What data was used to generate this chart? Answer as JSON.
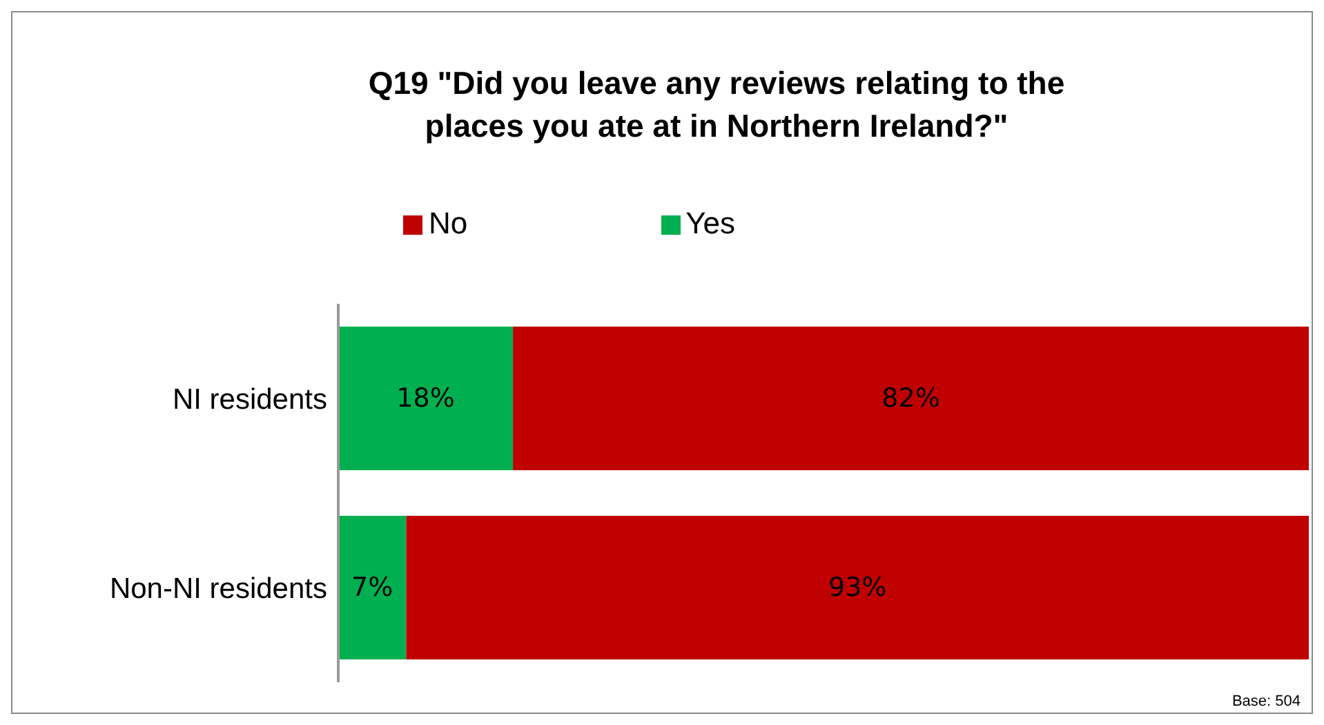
{
  "chart_data": {
    "type": "bar",
    "orientation": "horizontal",
    "stacked": true,
    "title": "Q19 \"Did you leave any reviews relating to the places you ate at in Northern Ireland?\"",
    "categories": [
      "NI residents",
      "Non-NI residents"
    ],
    "series": [
      {
        "name": "Yes",
        "color": "#00b050",
        "values": [
          18,
          7
        ],
        "value_labels": [
          "18%",
          "7%"
        ]
      },
      {
        "name": "No",
        "color": "#c00000",
        "values": [
          82,
          93
        ],
        "value_labels": [
          "82%",
          "93%"
        ]
      }
    ],
    "legend": "top",
    "tick_labels": "y",
    "annotations": [
      "Base: 504"
    ]
  }
}
